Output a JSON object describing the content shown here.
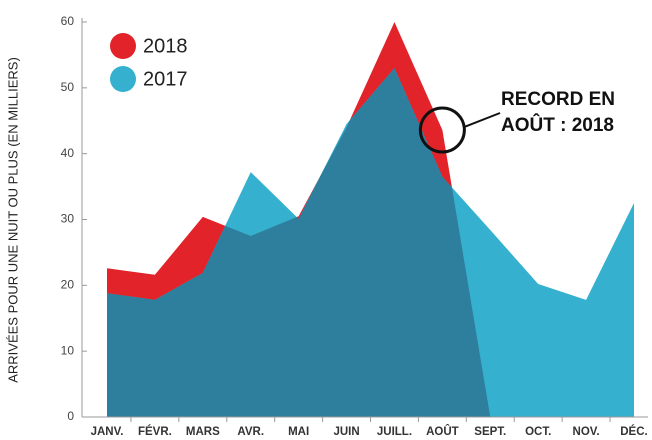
{
  "chart_data": {
    "type": "area",
    "y_label": "ARRIVÉES POUR UNE NUIT OU PLUS (EN MILLIERS)",
    "categories": [
      "JANV.",
      "FÉVR.",
      "MARS",
      "AVR.",
      "MAI",
      "JUIN",
      "JUILL.",
      "AOÛT",
      "SEPT.",
      "OCT.",
      "NOV.",
      "DÉC."
    ],
    "series": [
      {
        "name": "2018",
        "color": "#e2232a",
        "values": [
          22.6,
          21.6,
          30.4,
          27.5,
          30.5,
          44,
          60,
          43.6,
          0,
          null,
          null,
          null
        ]
      },
      {
        "name": "2017",
        "color": "#35b0cf",
        "values": [
          18.8,
          17.8,
          21.9,
          37.2,
          30.1,
          44.5,
          53,
          36.5,
          28.4,
          20.2,
          17.8,
          32.5
        ]
      }
    ],
    "overlap_color": "#2e7f9d",
    "ylim": [
      0,
      60
    ],
    "yticks": [
      0,
      10,
      20,
      30,
      40,
      50,
      60
    ],
    "legend": "top-left",
    "annotation": [
      "RECORD EN",
      "AOÛT : 2018"
    ]
  }
}
